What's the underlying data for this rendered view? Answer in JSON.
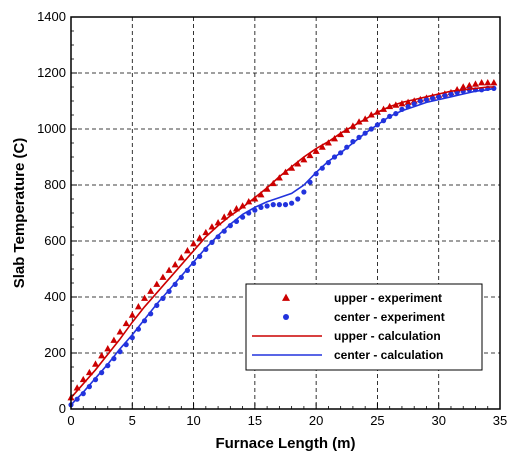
{
  "chart_data": {
    "type": "scatter",
    "xlabel": "Furnace Length (m)",
    "ylabel": "Slab Temperature (C)",
    "xlim": [
      0,
      35
    ],
    "ylim": [
      0,
      1400
    ],
    "xticks": [
      0,
      5,
      10,
      15,
      20,
      25,
      30,
      35
    ],
    "yticks": [
      0,
      200,
      400,
      600,
      800,
      1000,
      1200,
      1400
    ],
    "grid": true,
    "legend_position": "bottom-right",
    "colors": {
      "red": "#cc0000",
      "blue": "#2233dd"
    },
    "series": [
      {
        "name": "upper  - experiment",
        "kind": "scatter",
        "marker": "triangle",
        "color": "#cc0000",
        "x": [
          0,
          0.5,
          1,
          1.5,
          2,
          2.5,
          3,
          3.5,
          4,
          4.5,
          5,
          5.5,
          6,
          6.5,
          7,
          7.5,
          8,
          8.5,
          9,
          9.5,
          10,
          10.5,
          11,
          11.5,
          12,
          12.5,
          13,
          13.5,
          14,
          14.5,
          15,
          15.5,
          16,
          16.5,
          17,
          17.5,
          18,
          18.5,
          19,
          19.5,
          20,
          20.5,
          21,
          21.5,
          22,
          22.5,
          23,
          23.5,
          24,
          24.5,
          25,
          25.5,
          26,
          26.5,
          27,
          27.5,
          28,
          28.5,
          29,
          29.5,
          30,
          30.5,
          31,
          31.5,
          32,
          32.5,
          33,
          33.5,
          34,
          34.5
        ],
        "y": [
          40,
          75,
          105,
          130,
          160,
          190,
          215,
          245,
          275,
          305,
          335,
          365,
          395,
          420,
          445,
          470,
          495,
          515,
          540,
          565,
          590,
          610,
          630,
          650,
          665,
          685,
          700,
          715,
          725,
          740,
          750,
          765,
          785,
          805,
          825,
          845,
          860,
          875,
          890,
          905,
          920,
          935,
          950,
          965,
          980,
          995,
          1010,
          1025,
          1035,
          1050,
          1060,
          1070,
          1080,
          1085,
          1090,
          1095,
          1100,
          1105,
          1110,
          1115,
          1120,
          1125,
          1130,
          1140,
          1150,
          1155,
          1160,
          1165,
          1165,
          1165
        ]
      },
      {
        "name": "center - experiment",
        "kind": "scatter",
        "marker": "circle",
        "color": "#2233dd",
        "x": [
          0,
          0.5,
          1,
          1.5,
          2,
          2.5,
          3,
          3.5,
          4,
          4.5,
          5,
          5.5,
          6,
          6.5,
          7,
          7.5,
          8,
          8.5,
          9,
          9.5,
          10,
          10.5,
          11,
          11.5,
          12,
          12.5,
          13,
          13.5,
          14,
          14.5,
          15,
          15.5,
          16,
          16.5,
          17,
          17.5,
          18,
          18.5,
          19,
          19.5,
          20,
          20.5,
          21,
          21.5,
          22,
          22.5,
          23,
          23.5,
          24,
          24.5,
          25,
          25.5,
          26,
          26.5,
          27,
          27.5,
          28,
          28.5,
          29,
          29.5,
          30,
          30.5,
          31,
          31.5,
          32,
          32.5,
          33,
          33.5,
          34,
          34.5
        ],
        "y": [
          15,
          35,
          55,
          80,
          105,
          130,
          155,
          180,
          205,
          230,
          255,
          285,
          315,
          340,
          370,
          395,
          420,
          445,
          470,
          495,
          520,
          545,
          570,
          595,
          615,
          635,
          655,
          670,
          685,
          700,
          710,
          720,
          725,
          730,
          730,
          730,
          735,
          750,
          775,
          810,
          840,
          860,
          880,
          900,
          915,
          935,
          955,
          970,
          985,
          1000,
          1015,
          1030,
          1045,
          1055,
          1070,
          1080,
          1090,
          1100,
          1105,
          1110,
          1115,
          1120,
          1125,
          1130,
          1135,
          1140,
          1140,
          1140,
          1145,
          1145
        ]
      },
      {
        "name": "upper  - calculation",
        "kind": "line",
        "color": "#cc0000",
        "x": [
          0,
          1,
          2,
          3,
          4,
          5,
          6,
          7,
          8,
          9,
          10,
          11,
          12,
          13,
          14,
          15,
          16,
          17,
          18,
          19,
          20,
          21,
          22,
          23,
          24,
          25,
          26,
          27,
          28,
          29,
          30,
          31,
          32,
          33,
          34,
          34.5
        ],
        "y": [
          40,
          90,
          140,
          195,
          250,
          310,
          365,
          415,
          465,
          515,
          565,
          615,
          655,
          690,
          720,
          755,
          790,
          830,
          865,
          900,
          930,
          955,
          985,
          1010,
          1035,
          1060,
          1080,
          1095,
          1105,
          1115,
          1125,
          1135,
          1140,
          1145,
          1150,
          1150
        ]
      },
      {
        "name": "center - calculation",
        "kind": "line",
        "color": "#2233dd",
        "x": [
          0,
          1,
          2,
          3,
          4,
          5,
          6,
          7,
          8,
          9,
          10,
          11,
          12,
          13,
          14,
          15,
          16,
          17,
          18,
          19,
          20,
          21,
          22,
          23,
          24,
          25,
          26,
          27,
          28,
          29,
          30,
          31,
          32,
          33,
          34,
          34.5
        ],
        "y": [
          15,
          60,
          110,
          160,
          215,
          265,
          320,
          375,
          425,
          475,
          525,
          575,
          620,
          660,
          695,
          720,
          740,
          755,
          770,
          800,
          845,
          885,
          915,
          950,
          985,
          1015,
          1045,
          1065,
          1080,
          1095,
          1105,
          1115,
          1125,
          1135,
          1140,
          1145
        ]
      }
    ]
  }
}
